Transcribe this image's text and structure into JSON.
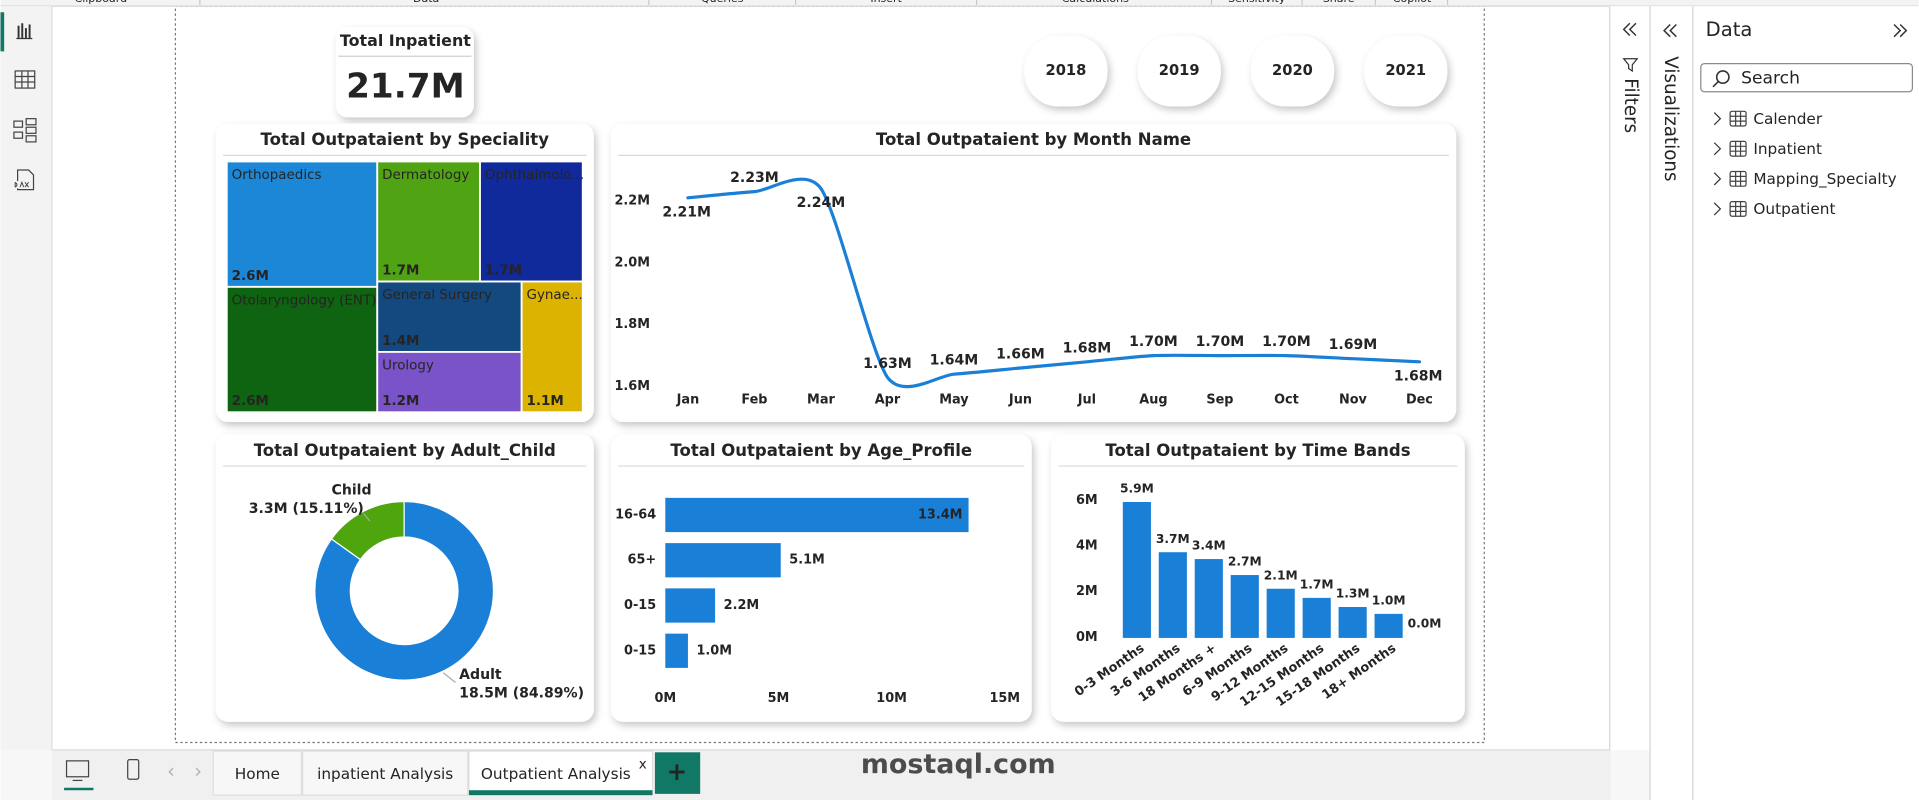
{
  "ribbon": {
    "groups": [
      "Clipboard",
      "Data",
      "Queries",
      "Insert",
      "Calculations",
      "Sensitivity",
      "Share",
      "Copilot"
    ]
  },
  "panes": {
    "filters": "Filters",
    "visualizations": "Visualizations",
    "data": {
      "title": "Data",
      "search": "Search",
      "tables": [
        "Calender",
        "Inpatient",
        "Mapping_Specialty",
        "Outpatient"
      ]
    }
  },
  "card": {
    "title": "Total Inpatient",
    "value": "21.7M"
  },
  "slicer": {
    "years": [
      "2018",
      "2019",
      "2020",
      "2021"
    ]
  },
  "chart_data": [
    {
      "type": "treemap",
      "title": "Total Outpataient by Speciality",
      "categories": [
        "Orthopaedics",
        "Dermatology",
        "Ophthalmolo...",
        "Otolaryngology (ENT)",
        "General Surgery",
        "Gynae...",
        "Urology"
      ],
      "values": [
        2.6,
        1.7,
        1.7,
        2.6,
        1.4,
        1.1,
        1.2
      ],
      "value_labels": [
        "2.6M",
        "1.7M",
        "1.7M",
        "2.6M",
        "1.4M",
        "1.1M",
        "1.2M"
      ],
      "colors": [
        "#1b87d6",
        "#50a414",
        "#10299b",
        "#0e6410",
        "#13497f",
        "#dcb300",
        "#7b53c9"
      ]
    },
    {
      "type": "line",
      "title": "Total Outpataient by Month Name",
      "categories": [
        "Jan",
        "Feb",
        "Mar",
        "Apr",
        "May",
        "Jun",
        "Jul",
        "Aug",
        "Sep",
        "Oct",
        "Nov",
        "Dec"
      ],
      "values": [
        2.21,
        2.23,
        2.24,
        1.63,
        1.64,
        1.66,
        1.68,
        1.7,
        1.7,
        1.7,
        1.69,
        1.68
      ],
      "value_labels": [
        "2.21M",
        "2.23M",
        "2.24M",
        "1.63M",
        "1.64M",
        "1.66M",
        "1.68M",
        "1.70M",
        "1.70M",
        "1.70M",
        "1.69M",
        "1.68M"
      ],
      "color": "#1a7fd6",
      "ylim": [
        1.6,
        2.25
      ],
      "yticks": [
        {
          "value": 1.6,
          "label": "1.6M"
        },
        {
          "value": 1.8,
          "label": "1.8M"
        },
        {
          "value": 2.0,
          "label": "2.0M"
        },
        {
          "value": 2.2,
          "label": "2.2M"
        }
      ]
    },
    {
      "type": "donut",
      "title": "Total Outpataient by Adult_Child",
      "categories": [
        "Child",
        "Adult"
      ],
      "values": [
        3.3,
        18.5
      ],
      "value_labels": [
        "3.3M (15.11%)",
        "18.5M (84.89%)"
      ],
      "colors": [
        "#4ea50e",
        "#1a7fd6"
      ]
    },
    {
      "type": "bar",
      "orientation": "horizontal",
      "title": "Total Outpataient by Age_Profile",
      "categories": [
        "16-64",
        "65+",
        "0-15",
        "0-15"
      ],
      "values": [
        13.4,
        5.1,
        2.2,
        1.0
      ],
      "value_labels": [
        "13.4M",
        "5.1M",
        "2.2M",
        "1.0M"
      ],
      "color": "#1a7fd6",
      "xlim": [
        0,
        15
      ],
      "xticks": [
        {
          "value": 0,
          "label": "0M"
        },
        {
          "value": 5,
          "label": "5M"
        },
        {
          "value": 10,
          "label": "10M"
        },
        {
          "value": 15,
          "label": "15M"
        }
      ]
    },
    {
      "type": "bar",
      "orientation": "vertical",
      "title": "Total Outpataient by Time Bands",
      "categories": [
        "0-3 Months",
        "3-6 Months",
        "18 Months +",
        "6-9 Months",
        "9-12 Months",
        "12-15 Months",
        "15-18 Months",
        "18+ Months",
        null
      ],
      "values": [
        5.9,
        3.7,
        3.4,
        2.7,
        2.1,
        1.7,
        1.3,
        1.0,
        0.0
      ],
      "value_labels": [
        "5.9M",
        "3.7M",
        "3.4M",
        "2.7M",
        "2.1M",
        "1.7M",
        "1.3M",
        "1.0M",
        "0.0M"
      ],
      "color": "#1a7fd6",
      "ylim": [
        0,
        6
      ],
      "yticks": [
        {
          "value": 0,
          "label": "0M"
        },
        {
          "value": 2,
          "label": "2M"
        },
        {
          "value": 4,
          "label": "4M"
        },
        {
          "value": 6,
          "label": "6M"
        }
      ]
    }
  ],
  "tabs": {
    "pages": [
      "Home",
      "inpatient Analysis",
      "Outpatient Analysis"
    ],
    "close": "x",
    "add": "+"
  },
  "watermark": "mostaql.com"
}
